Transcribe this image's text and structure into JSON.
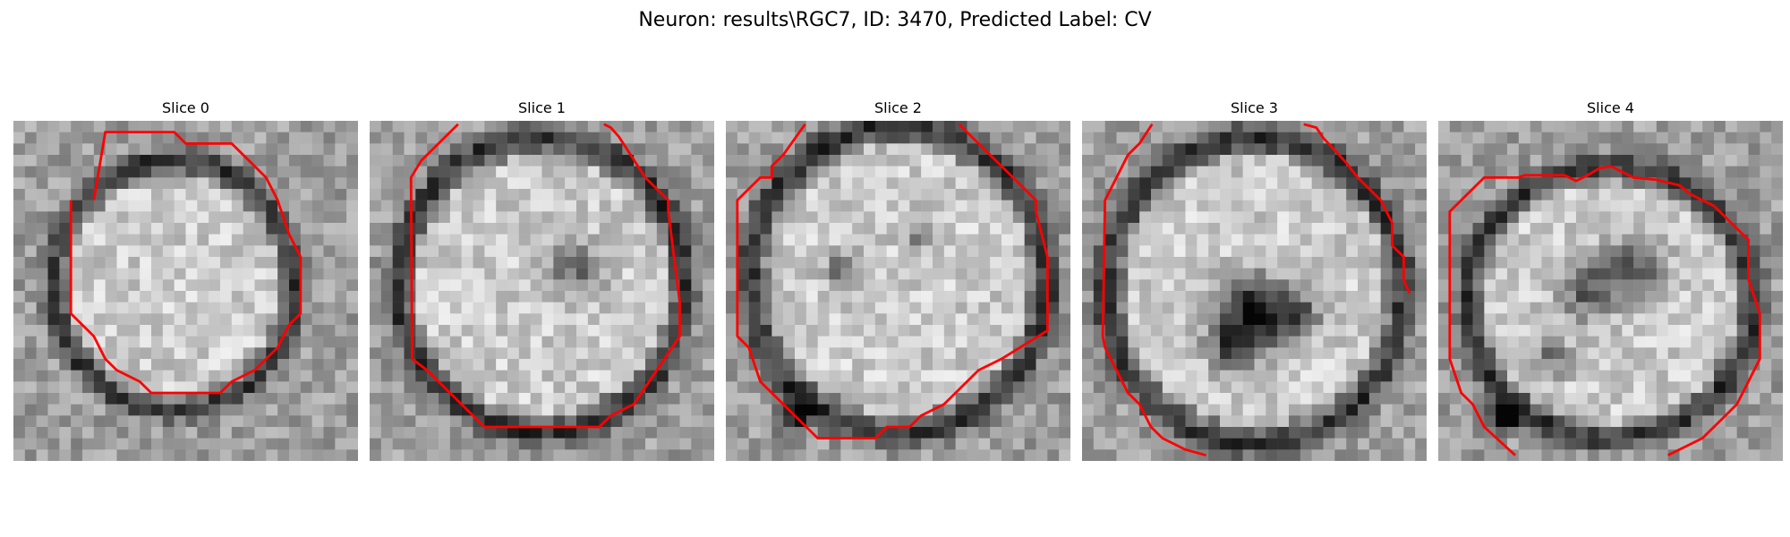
{
  "figure": {
    "title": "Neuron: results\\RGC7, ID: 3470, Predicted Label: CV",
    "colors": {
      "contour": "#ff0000",
      "background": "#ffffff"
    }
  },
  "slices": [
    {
      "title": "Slice 0",
      "image": "grayscale-em-crop-neuron-slice-0",
      "contour_color": "#ff0000"
    },
    {
      "title": "Slice 1",
      "image": "grayscale-em-crop-neuron-slice-1",
      "contour_color": "#ff0000"
    },
    {
      "title": "Slice 2",
      "image": "grayscale-em-crop-neuron-slice-2",
      "contour_color": "#ff0000"
    },
    {
      "title": "Slice 3",
      "image": "grayscale-em-crop-neuron-slice-3",
      "contour_color": "#ff0000"
    },
    {
      "title": "Slice 4",
      "image": "grayscale-em-crop-neuron-slice-4",
      "contour_color": "#ff0000"
    }
  ]
}
